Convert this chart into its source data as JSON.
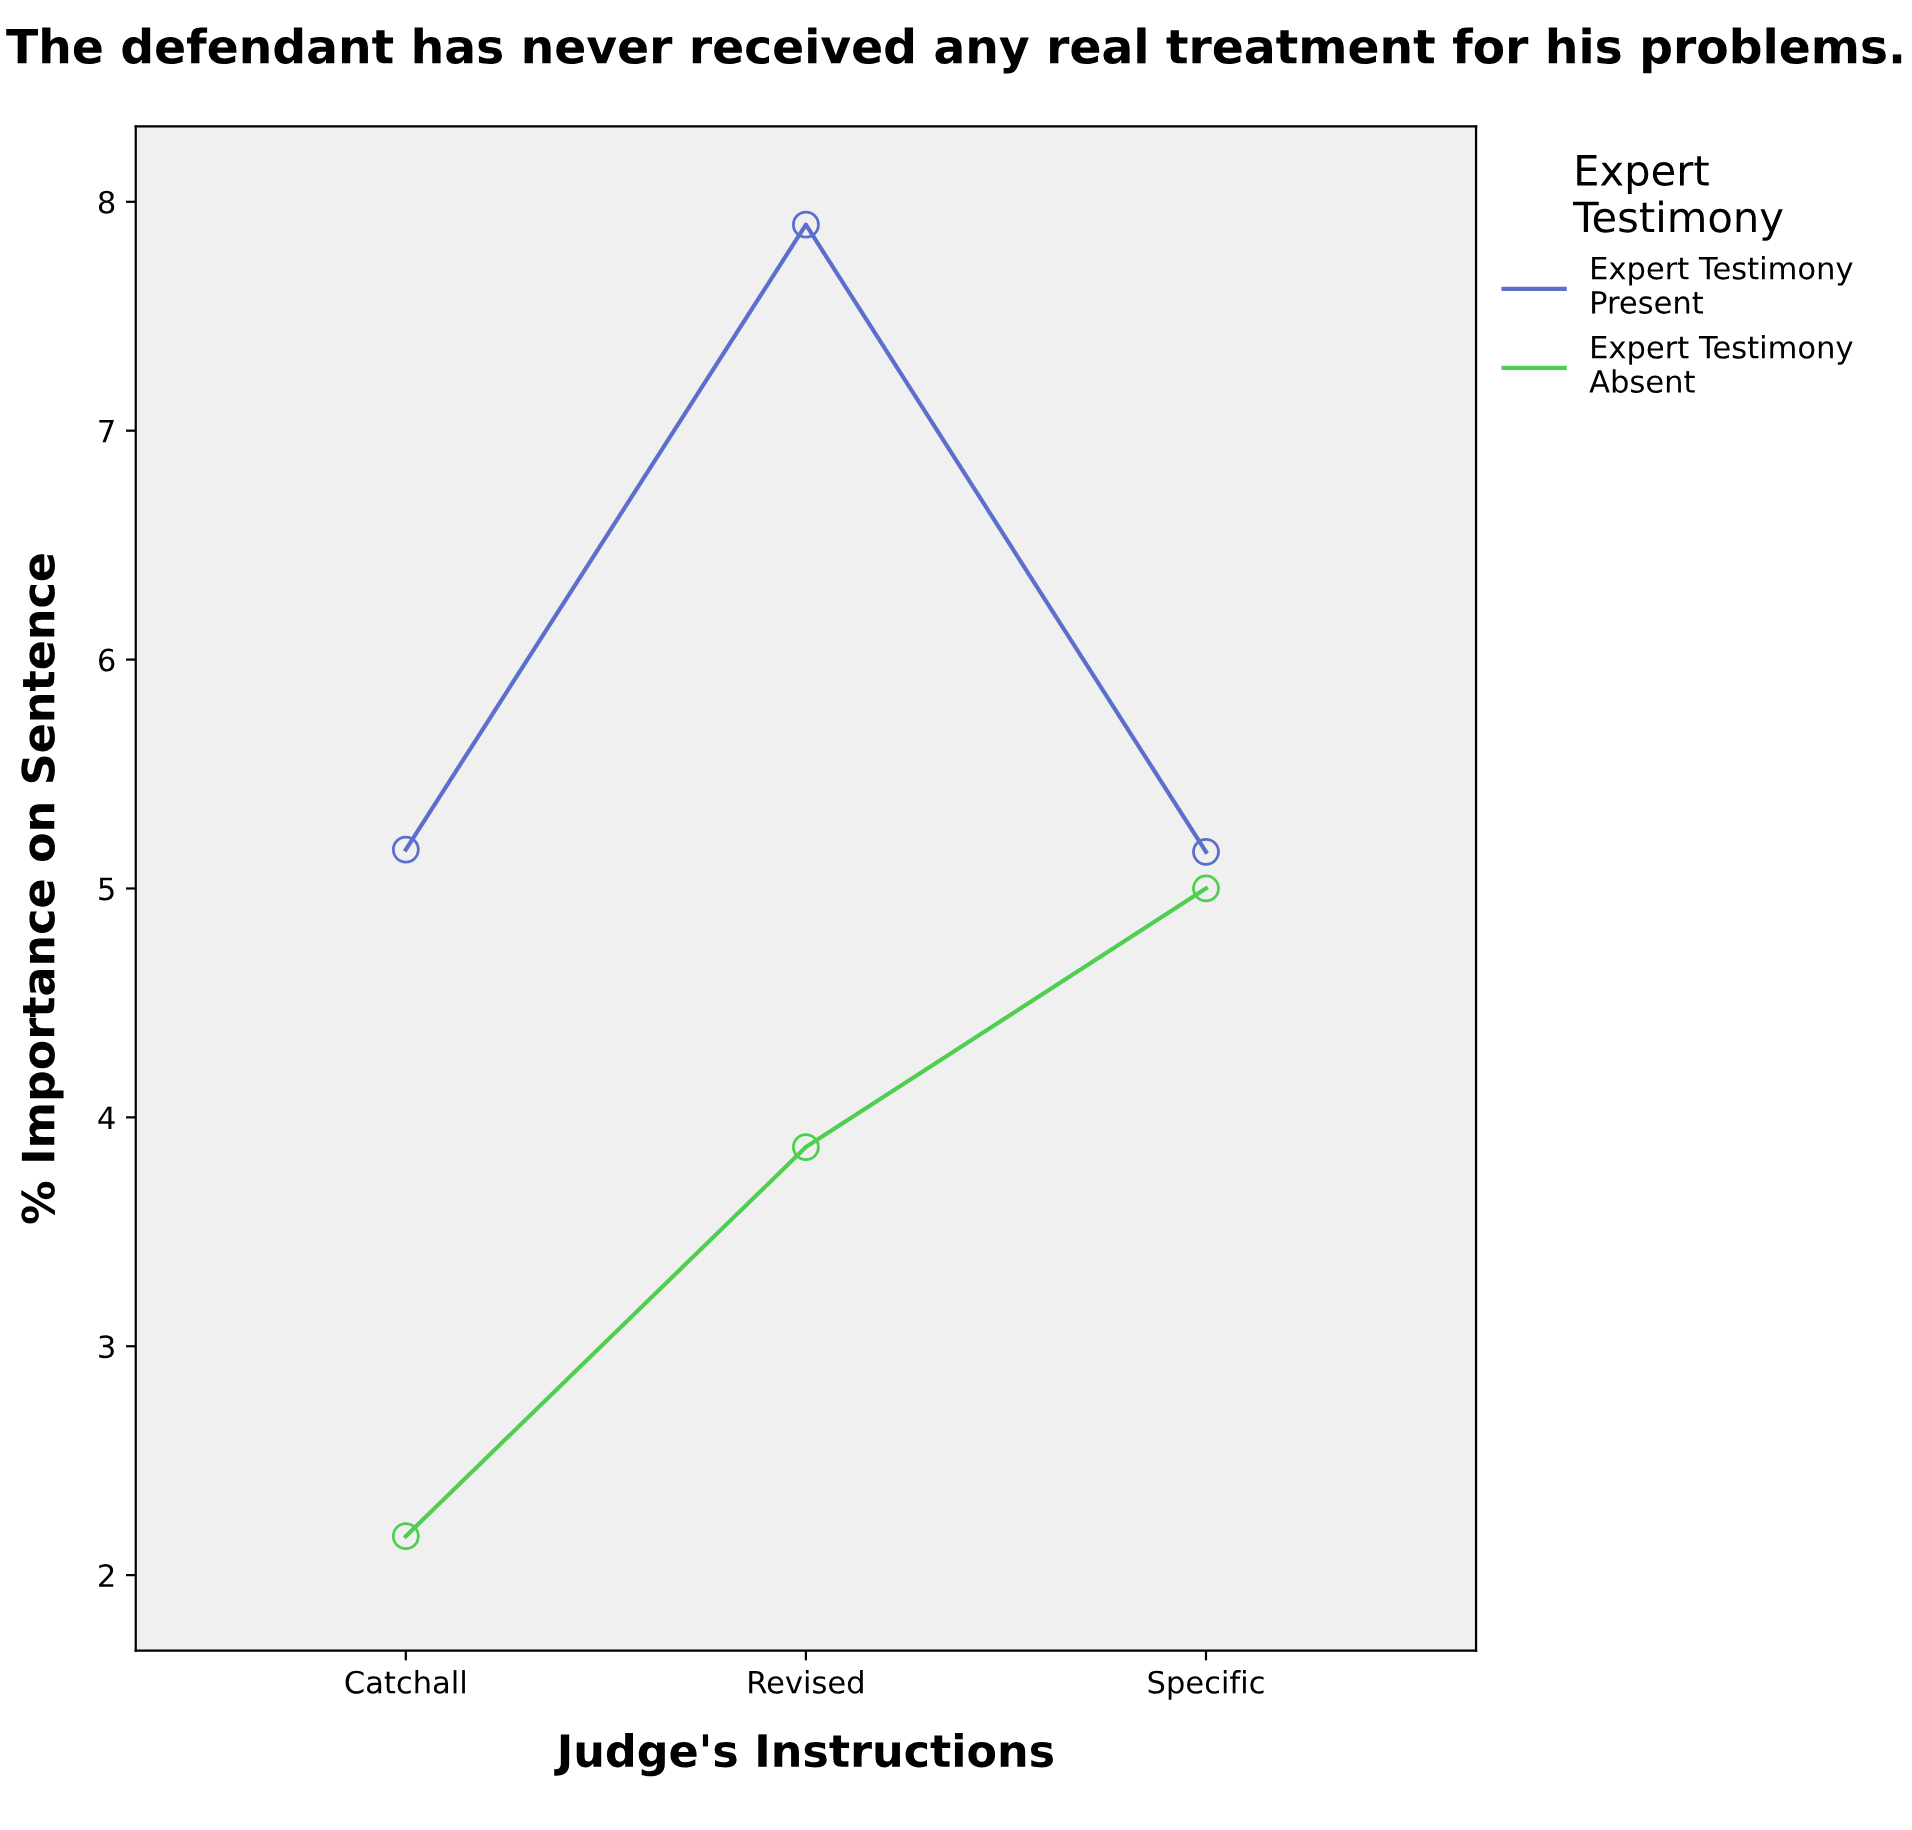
{
  "chart_data": {
    "type": "line",
    "title": "The defendant has never received any real treatment for his problems.",
    "xlabel": "Judge's Instructions",
    "ylabel": "% Importance on Sentence",
    "legend_title": "Expert\nTestimony",
    "categories": [
      "Catchall",
      "Revised",
      "Specific"
    ],
    "series": [
      {
        "name": "Expert Testimony\nPresent",
        "color": "#5b6fcc",
        "values": [
          5.17,
          7.9,
          5.16
        ]
      },
      {
        "name": "Expert Testimony\nAbsent",
        "color": "#4fcf4f",
        "values": [
          2.17,
          3.87,
          5.0
        ]
      }
    ],
    "ylim": [
      1.67,
      8.33
    ],
    "yticks": [
      2,
      3,
      4,
      5,
      6,
      7,
      8
    ],
    "grid": false,
    "legend": "right",
    "marker": "circle",
    "line_style": "solid"
  }
}
